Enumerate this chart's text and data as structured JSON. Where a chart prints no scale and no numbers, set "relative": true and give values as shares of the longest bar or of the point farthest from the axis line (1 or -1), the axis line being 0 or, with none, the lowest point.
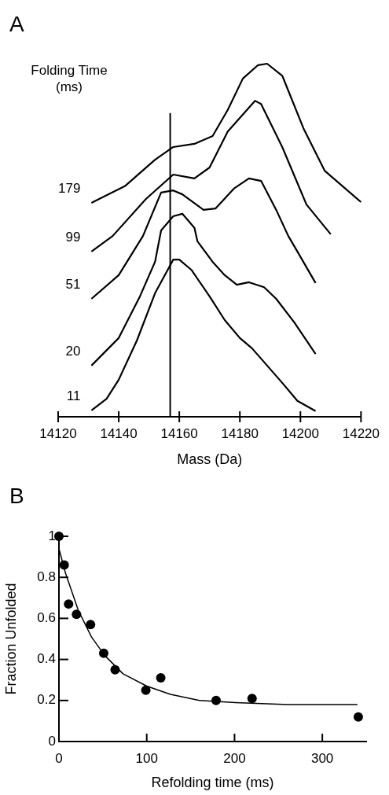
{
  "chart_data": [
    {
      "type": "line",
      "title": "A",
      "xlabel": "Mass (Da)",
      "legend_title": "Folding Time (ms)",
      "relative": true,
      "legend": false,
      "xlim": [
        14120,
        14220
      ],
      "xticks": [
        14120,
        14140,
        14160,
        14180,
        14200,
        14220
      ],
      "ref_lines": [
        {
          "axis": "x",
          "value": 14157
        }
      ],
      "series": [
        {
          "name": "179",
          "color": "#000000",
          "x": [
            14131,
            14142,
            14152,
            14158,
            14165,
            14171,
            14176,
            14181,
            14186,
            14189,
            14194,
            14201,
            14208,
            14220
          ],
          "values": [
            0.606,
            0.653,
            0.728,
            0.764,
            0.773,
            0.795,
            0.869,
            0.958,
            0.996,
            1.0,
            0.966,
            0.817,
            0.697,
            0.608
          ]
        },
        {
          "name": "99",
          "color": "#000000",
          "x": [
            14131,
            14138,
            14149,
            14158,
            14165,
            14170,
            14176,
            14185,
            14187,
            14194,
            14202,
            14210
          ],
          "values": [
            0.468,
            0.512,
            0.617,
            0.686,
            0.675,
            0.706,
            0.808,
            0.895,
            0.886,
            0.764,
            0.601,
            0.517
          ]
        },
        {
          "name": "51",
          "color": "#000000",
          "x": [
            14131,
            14140,
            14148,
            14154,
            14158,
            14161,
            14168,
            14172,
            14178,
            14183,
            14187,
            14192,
            14196,
            14199,
            14205
          ],
          "values": [
            0.334,
            0.401,
            0.512,
            0.635,
            0.641,
            0.63,
            0.586,
            0.59,
            0.646,
            0.675,
            0.668,
            0.586,
            0.512,
            0.468,
            0.379
          ]
        },
        {
          "name": "20",
          "color": "#000000",
          "x": [
            14131,
            14140,
            14147,
            14152,
            14154,
            14158,
            14161,
            14165,
            14166,
            14171,
            14175,
            14179,
            14183,
            14188,
            14192,
            14198,
            14205
          ],
          "values": [
            0.145,
            0.223,
            0.341,
            0.439,
            0.528,
            0.568,
            0.575,
            0.535,
            0.497,
            0.439,
            0.401,
            0.374,
            0.381,
            0.367,
            0.334,
            0.267,
            0.178
          ]
        },
        {
          "name": "11",
          "color": "#000000",
          "x": [
            14131,
            14136,
            14140,
            14146,
            14152,
            14158,
            14160,
            14164,
            14170,
            14175,
            14180,
            14184,
            14194,
            14199,
            14205
          ],
          "values": [
            0.018,
            0.051,
            0.105,
            0.216,
            0.35,
            0.445,
            0.445,
            0.416,
            0.341,
            0.274,
            0.223,
            0.194,
            0.096,
            0.045,
            0.016
          ]
        }
      ]
    },
    {
      "type": "scatter",
      "title": "B",
      "xlabel": "Refolding time (ms)",
      "ylabel": "Fraction Unfolded",
      "legend": false,
      "marker": "circle",
      "xlim": [
        0,
        350
      ],
      "xticks": [
        0,
        100,
        200,
        300
      ],
      "ylim": [
        0,
        1
      ],
      "yticks": [
        0,
        0.2,
        0.4,
        0.6,
        0.8,
        1
      ],
      "series": [
        {
          "type": "scatter",
          "color": "#000000",
          "x": [
            0,
            6,
            11,
            20,
            36,
            51,
            64,
            99,
            116,
            179,
            220,
            341
          ],
          "values": [
            1.0,
            0.86,
            0.67,
            0.62,
            0.57,
            0.43,
            0.35,
            0.25,
            0.31,
            0.2,
            0.21,
            0.12
          ]
        },
        {
          "type": "line",
          "marker": "none",
          "color": "#000000",
          "x": [
            0,
            7.5,
            22,
            37,
            52,
            73,
            100,
            127,
            160,
            201,
            261,
            340
          ],
          "values": [
            0.94,
            0.82,
            0.64,
            0.51,
            0.42,
            0.33,
            0.27,
            0.23,
            0.2,
            0.19,
            0.18,
            0.18
          ]
        }
      ]
    }
  ]
}
